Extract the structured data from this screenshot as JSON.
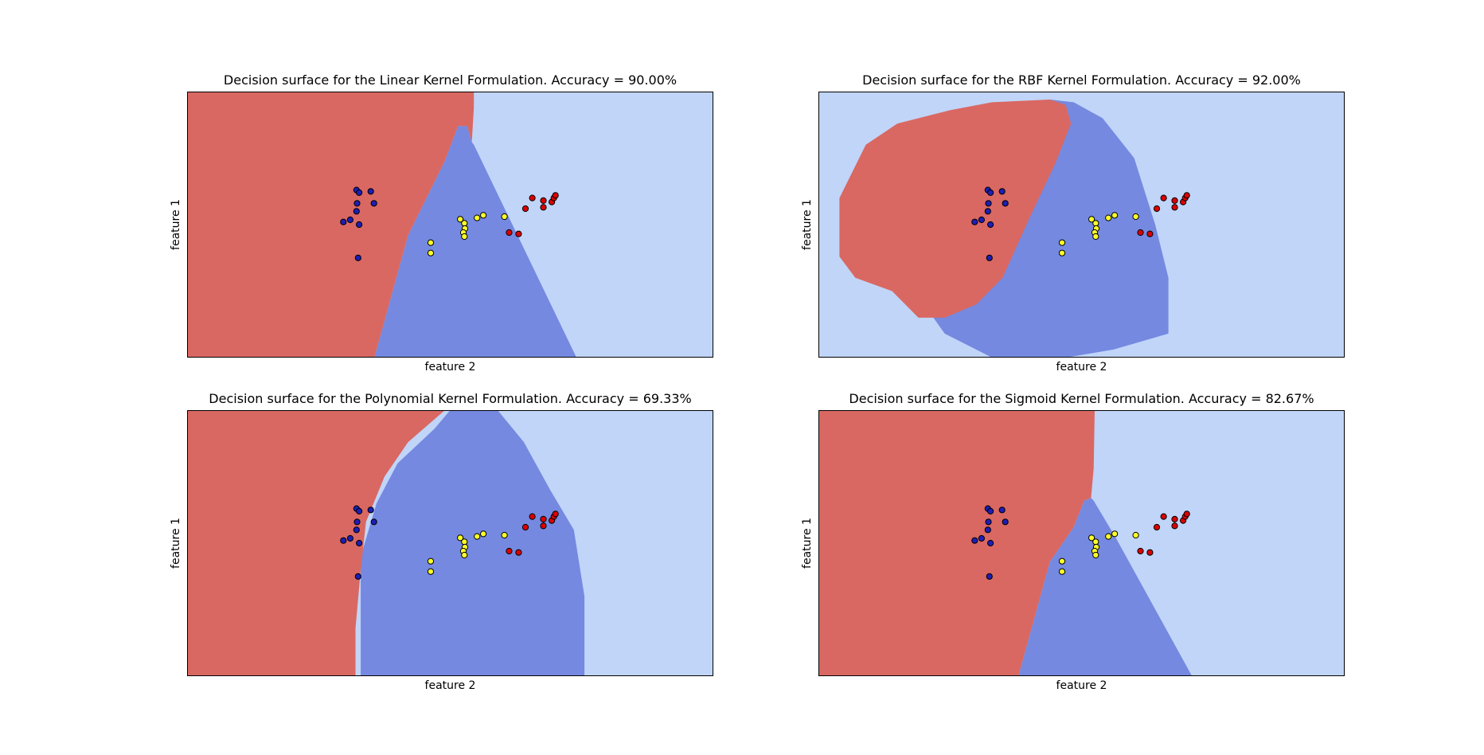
{
  "colors": {
    "class_a_region": "#d96862",
    "class_b_region": "#7589e0",
    "class_c_region": "#c0d5f8",
    "class_a_point": "#dc0000",
    "class_b_point": "#1e1eb4",
    "class_c_point": "#ffff2a",
    "frame": "#000000"
  },
  "chart_data": [
    {
      "type": "scatter",
      "title": "Decision surface for the Linear Kernel Formulation. Accuracy = 90.00%",
      "xlabel": "feature 2",
      "ylabel": "feature 1",
      "xlim": [
        0,
        1
      ],
      "ylim": [
        0,
        1
      ],
      "xticks": [],
      "yticks": [],
      "regions": [
        {
          "class": "a",
          "polygon": [
            [
              0,
              0
            ],
            [
              0.545,
              0
            ],
            [
              0.545,
              0.06
            ],
            [
              0.541,
              0.19
            ],
            [
              0.532,
              0.13
            ],
            [
              0.515,
              0.13
            ],
            [
              0.49,
              0.26
            ],
            [
              0.42,
              0.54
            ],
            [
              0.356,
              1
            ],
            [
              0,
              1
            ]
          ]
        },
        {
          "class": "b",
          "polygon": [
            [
              0.515,
              0.13
            ],
            [
              0.532,
              0.13
            ],
            [
              0.541,
              0.19
            ],
            [
              0.545,
              0.2
            ],
            [
              0.74,
              1
            ],
            [
              0.356,
              1
            ],
            [
              0.42,
              0.54
            ],
            [
              0.49,
              0.26
            ]
          ]
        }
      ],
      "background_class": "c"
    },
    {
      "type": "scatter",
      "title": "Decision surface for the RBF Kernel Formulation. Accuracy = 92.00%",
      "xlabel": "feature 2",
      "ylabel": "feature 1",
      "xlim": [
        0,
        1
      ],
      "ylim": [
        0,
        1
      ],
      "xticks": [],
      "yticks": [],
      "regions": [
        {
          "class": "b",
          "polygon": [
            [
              0.44,
              0.03
            ],
            [
              0.485,
              0.04
            ],
            [
              0.54,
              0.1
            ],
            [
              0.6,
              0.25
            ],
            [
              0.64,
              0.5
            ],
            [
              0.665,
              0.7
            ],
            [
              0.665,
              0.91
            ],
            [
              0.56,
              0.97
            ],
            [
              0.47,
              1.0
            ],
            [
              0.33,
              1.0
            ],
            [
              0.24,
              0.91
            ],
            [
              0.215,
              0.84
            ]
          ]
        },
        {
          "class": "a",
          "polygon": [
            [
              0.44,
              0.03
            ],
            [
              0.47,
              0.05
            ],
            [
              0.48,
              0.12
            ],
            [
              0.45,
              0.27
            ],
            [
              0.4,
              0.48
            ],
            [
              0.35,
              0.7
            ],
            [
              0.3,
              0.8
            ],
            [
              0.24,
              0.85
            ],
            [
              0.19,
              0.85
            ],
            [
              0.14,
              0.75
            ],
            [
              0.07,
              0.7
            ],
            [
              0.04,
              0.62
            ],
            [
              0.04,
              0.4
            ],
            [
              0.09,
              0.2
            ],
            [
              0.15,
              0.12
            ],
            [
              0.25,
              0.07
            ],
            [
              0.33,
              0.04
            ]
          ]
        }
      ],
      "background_class": "c"
    },
    {
      "type": "scatter",
      "title": "Decision surface for the Polynomial Kernel Formulation. Accuracy = 69.33%",
      "xlabel": "feature 2",
      "ylabel": "feature 1",
      "xlim": [
        0,
        1
      ],
      "ylim": [
        0,
        1
      ],
      "xticks": [],
      "yticks": [],
      "regions": [
        {
          "class": "b",
          "polygon": [
            [
              0.33,
              1.0
            ],
            [
              0.33,
              0.86
            ],
            [
              0.33,
              0.55
            ],
            [
              0.36,
              0.35
            ],
            [
              0.4,
              0.2
            ],
            [
              0.47,
              0.07
            ],
            [
              0.5,
              0
            ],
            [
              0.59,
              0
            ],
            [
              0.64,
              0.12
            ],
            [
              0.69,
              0.3
            ],
            [
              0.735,
              0.45
            ],
            [
              0.755,
              0.7
            ],
            [
              0.755,
              1.0
            ]
          ]
        },
        {
          "class": "a",
          "polygon": [
            [
              0,
              0
            ],
            [
              0.49,
              0
            ],
            [
              0.42,
              0.12
            ],
            [
              0.375,
              0.25
            ],
            [
              0.34,
              0.42
            ],
            [
              0.33,
              0.6
            ],
            [
              0.32,
              0.82
            ],
            [
              0.32,
              1.0
            ],
            [
              0,
              1.0
            ]
          ]
        }
      ],
      "background_class": "c"
    },
    {
      "type": "scatter",
      "title": "Decision surface for the Sigmoid Kernel Formulation. Accuracy = 82.67%",
      "xlabel": "feature 2",
      "ylabel": "feature 1",
      "xlim": [
        0,
        1
      ],
      "ylim": [
        0,
        1
      ],
      "xticks": [],
      "yticks": [],
      "regions": [
        {
          "class": "a",
          "polygon": [
            [
              0,
              0
            ],
            [
              0.525,
              0
            ],
            [
              0.523,
              0.22
            ],
            [
              0.518,
              0.33
            ],
            [
              0.505,
              0.34
            ],
            [
              0.485,
              0.44
            ],
            [
              0.44,
              0.57
            ],
            [
              0.38,
              1.0
            ],
            [
              0,
              1.0
            ]
          ]
        },
        {
          "class": "b",
          "polygon": [
            [
              0.505,
              0.34
            ],
            [
              0.518,
              0.33
            ],
            [
              0.523,
              0.34
            ],
            [
              0.565,
              0.48
            ],
            [
              0.71,
              1.0
            ],
            [
              0.38,
              1.0
            ],
            [
              0.44,
              0.57
            ],
            [
              0.485,
              0.44
            ]
          ]
        }
      ],
      "background_class": "c"
    }
  ],
  "points": [
    {
      "x": 0.325,
      "y": 0.625,
      "c": "b"
    },
    {
      "x": 0.322,
      "y": 0.37,
      "c": "b"
    },
    {
      "x": 0.327,
      "y": 0.38,
      "c": "b"
    },
    {
      "x": 0.349,
      "y": 0.375,
      "c": "b"
    },
    {
      "x": 0.355,
      "y": 0.42,
      "c": "b"
    },
    {
      "x": 0.323,
      "y": 0.42,
      "c": "b"
    },
    {
      "x": 0.322,
      "y": 0.45,
      "c": "b"
    },
    {
      "x": 0.297,
      "y": 0.49,
      "c": "b"
    },
    {
      "x": 0.31,
      "y": 0.482,
      "c": "b"
    },
    {
      "x": 0.327,
      "y": 0.5,
      "c": "b"
    },
    {
      "x": 0.463,
      "y": 0.568,
      "c": "c"
    },
    {
      "x": 0.463,
      "y": 0.607,
      "c": "c"
    },
    {
      "x": 0.519,
      "y": 0.48,
      "c": "c"
    },
    {
      "x": 0.527,
      "y": 0.495,
      "c": "c"
    },
    {
      "x": 0.528,
      "y": 0.515,
      "c": "c"
    },
    {
      "x": 0.525,
      "y": 0.53,
      "c": "c"
    },
    {
      "x": 0.527,
      "y": 0.545,
      "c": "c"
    },
    {
      "x": 0.551,
      "y": 0.475,
      "c": "c"
    },
    {
      "x": 0.563,
      "y": 0.465,
      "c": "c"
    },
    {
      "x": 0.603,
      "y": 0.47,
      "c": "c"
    },
    {
      "x": 0.612,
      "y": 0.53,
      "c": "a"
    },
    {
      "x": 0.63,
      "y": 0.535,
      "c": "a"
    },
    {
      "x": 0.643,
      "y": 0.44,
      "c": "a"
    },
    {
      "x": 0.656,
      "y": 0.4,
      "c": "a"
    },
    {
      "x": 0.677,
      "y": 0.435,
      "c": "a"
    },
    {
      "x": 0.677,
      "y": 0.41,
      "c": "a"
    },
    {
      "x": 0.693,
      "y": 0.415,
      "c": "a"
    },
    {
      "x": 0.697,
      "y": 0.4,
      "c": "a"
    },
    {
      "x": 0.7,
      "y": 0.39,
      "c": "a"
    }
  ]
}
